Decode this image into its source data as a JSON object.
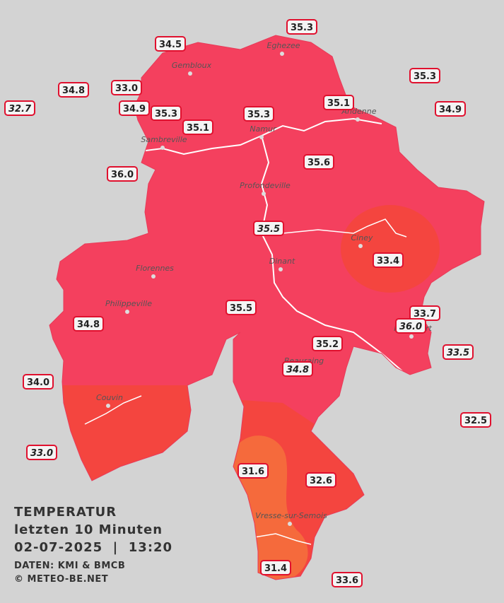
{
  "title": {
    "heading": "TEMPERATUR",
    "period": "letzten 10 Minuten",
    "datetime": "02-07-2025  |  13:20",
    "source": "DATEN: KMI & BMCB",
    "copyright": "© METEO-BE.NET"
  },
  "cities": [
    {
      "name": "Eghezee"
    },
    {
      "name": "Gembloux"
    },
    {
      "name": "Andenne"
    },
    {
      "name": "Namur"
    },
    {
      "name": "Sambreville"
    },
    {
      "name": "Profondeville"
    },
    {
      "name": "Ciney"
    },
    {
      "name": "Dinant"
    },
    {
      "name": "Florennes"
    },
    {
      "name": "Philippeville"
    },
    {
      "name": "Rochefort"
    },
    {
      "name": "Beauraing"
    },
    {
      "name": "Couvin"
    },
    {
      "name": "Vresse-sur-Semois"
    }
  ],
  "stations": [
    {
      "value": "35.3",
      "italic": false
    },
    {
      "value": "34.5",
      "italic": false
    },
    {
      "value": "35.3",
      "italic": false
    },
    {
      "value": "34.8",
      "italic": false
    },
    {
      "value": "33.0",
      "italic": false
    },
    {
      "value": "32.7",
      "italic": true
    },
    {
      "value": "34.9",
      "italic": false
    },
    {
      "value": "35.3",
      "italic": false
    },
    {
      "value": "35.3",
      "italic": false
    },
    {
      "value": "35.1",
      "italic": false
    },
    {
      "value": "34.9",
      "italic": false
    },
    {
      "value": "35.1",
      "italic": false
    },
    {
      "value": "36.0",
      "italic": false
    },
    {
      "value": "35.6",
      "italic": false
    },
    {
      "value": "35.5",
      "italic": true
    },
    {
      "value": "33.4",
      "italic": false
    },
    {
      "value": "35.5",
      "italic": false
    },
    {
      "value": "34.8",
      "italic": false
    },
    {
      "value": "33.7",
      "italic": false
    },
    {
      "value": "36.0",
      "italic": true
    },
    {
      "value": "33.5",
      "italic": true
    },
    {
      "value": "35.2",
      "italic": false
    },
    {
      "value": "34.8",
      "italic": true
    },
    {
      "value": "34.0",
      "italic": false
    },
    {
      "value": "32.5",
      "italic": false
    },
    {
      "value": "33.0",
      "italic": true
    },
    {
      "value": "31.6",
      "italic": false
    },
    {
      "value": "32.6",
      "italic": false
    },
    {
      "value": "31.4",
      "italic": false
    },
    {
      "value": "33.6",
      "italic": false
    }
  ]
}
